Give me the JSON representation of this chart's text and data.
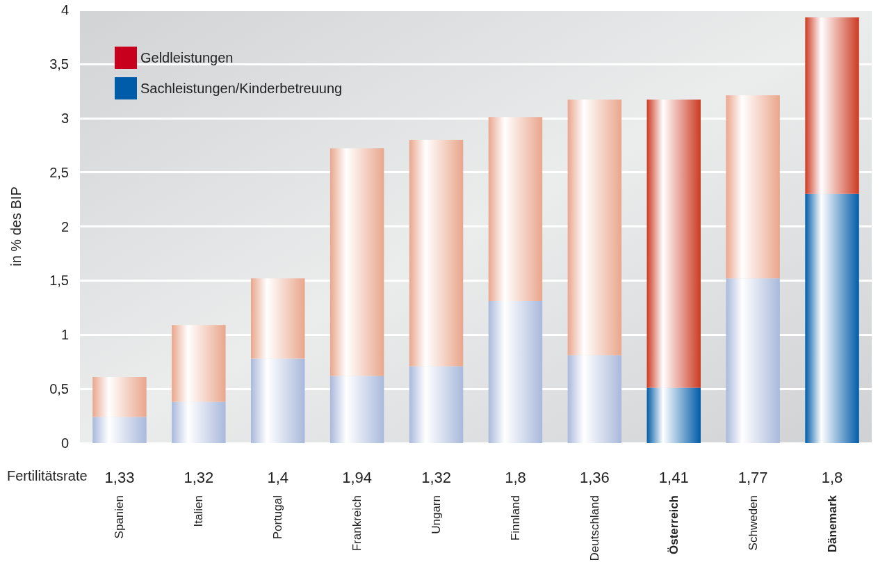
{
  "chart_data": {
    "type": "bar",
    "stacked": true,
    "ylabel": "in % des BIP",
    "categories": [
      "Spanien",
      "Italien",
      "Portugal",
      "Frankreich",
      "Ungarn",
      "Finnland",
      "Deutschland",
      "Österreich",
      "Schweden",
      "Dänemark"
    ],
    "series": [
      {
        "name": "Sachleistungen/Kinderbetreuung",
        "color": "#005ca8",
        "colors": [
          "#a9b9dc",
          "#a9b9dc",
          "#a9b9dc",
          "#a9b9dc",
          "#a9b9dc",
          "#a9b9dc",
          "#a9b9dc",
          "#005ca8",
          "#a9b9dc",
          "#005ca8"
        ],
        "values": [
          0.24,
          0.38,
          0.78,
          0.62,
          0.71,
          1.31,
          0.81,
          0.51,
          1.52,
          2.3
        ]
      },
      {
        "name": "Geldleistungen",
        "color": "#c8001e",
        "colors": [
          "#e9a68c",
          "#e9a68c",
          "#e9a68c",
          "#e9a68c",
          "#e9a68c",
          "#e9a68c",
          "#e9a68c",
          "#cc3a22",
          "#e9a68c",
          "#cc3a22"
        ],
        "values": [
          0.37,
          0.71,
          0.74,
          2.1,
          2.09,
          1.7,
          2.36,
          2.66,
          1.69,
          1.63
        ]
      }
    ],
    "ylim": [
      0,
      4
    ],
    "yticks": [
      0,
      {
        "value": 0.5,
        "label": "0,5"
      },
      1,
      {
        "value": 1.5,
        "label": "1,5"
      },
      2,
      {
        "value": 2.5,
        "label": "2,5"
      },
      3,
      {
        "value": 3.5,
        "label": "3,5"
      },
      4
    ],
    "grid": "y",
    "legend": "top left",
    "annotations": [
      "Fertilitätsrate",
      "1,33",
      "1,32",
      "1,4",
      "1,94",
      "1,32",
      "1,8",
      "1,36",
      "1,41",
      "1,77",
      "1,8"
    ]
  }
}
